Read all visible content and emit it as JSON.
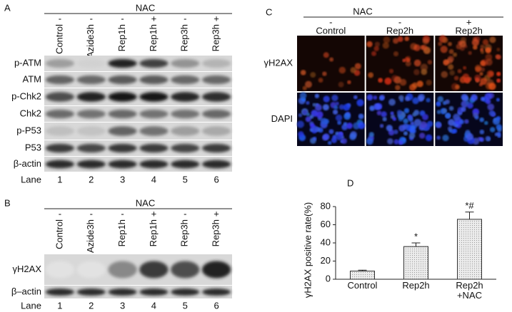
{
  "panel_a": {
    "label": "A",
    "treatment": "NAC",
    "signs": [
      "-",
      "-",
      "-",
      "+",
      "-",
      "+"
    ],
    "lanes": [
      "Control",
      "Azide3h",
      "Rep1h",
      "Rep1h",
      "Rep3h",
      "Rep3h"
    ],
    "rows": [
      "p-ATM",
      "ATM",
      "p-Chk2",
      "Chk2",
      "p-P53",
      "P53",
      "β-actin"
    ],
    "lane_title": "Lane",
    "lane_numbers": [
      1,
      2,
      3,
      4,
      5,
      6
    ]
  },
  "panel_b": {
    "label": "B",
    "treatment": "NAC",
    "signs": [
      "-",
      "-",
      "-",
      "+",
      "-",
      "+"
    ],
    "lanes": [
      "Control",
      "Azide3h",
      "Rep1h",
      "Rep1h",
      "Rep3h",
      "Rep3h"
    ],
    "rows": [
      "γH2AX",
      "β–actin"
    ],
    "lane_title": "Lane",
    "lane_numbers": [
      1,
      2,
      3,
      4,
      5,
      6
    ]
  },
  "panel_c": {
    "label": "C",
    "treatment": "NAC",
    "signs": [
      "-",
      "-",
      "+"
    ],
    "columns": [
      "Control",
      "Rep2h",
      "Rep2h"
    ],
    "rows": [
      "γH2AX",
      "DAPI"
    ]
  },
  "chart_data": {
    "type": "bar",
    "panel_label": "D",
    "y_label": "γH2AX positive rate(%)",
    "categories": [
      "Control",
      "Rep2h",
      "Rep2h\n+NAC"
    ],
    "values": [
      9,
      36,
      66
    ],
    "errors": [
      1,
      4,
      8
    ],
    "annotations": [
      null,
      "*",
      "*#"
    ],
    "color": "#e4e4e4",
    "ylim": [
      0,
      80
    ],
    "yticks": [
      0,
      20,
      40,
      60,
      80
    ]
  }
}
